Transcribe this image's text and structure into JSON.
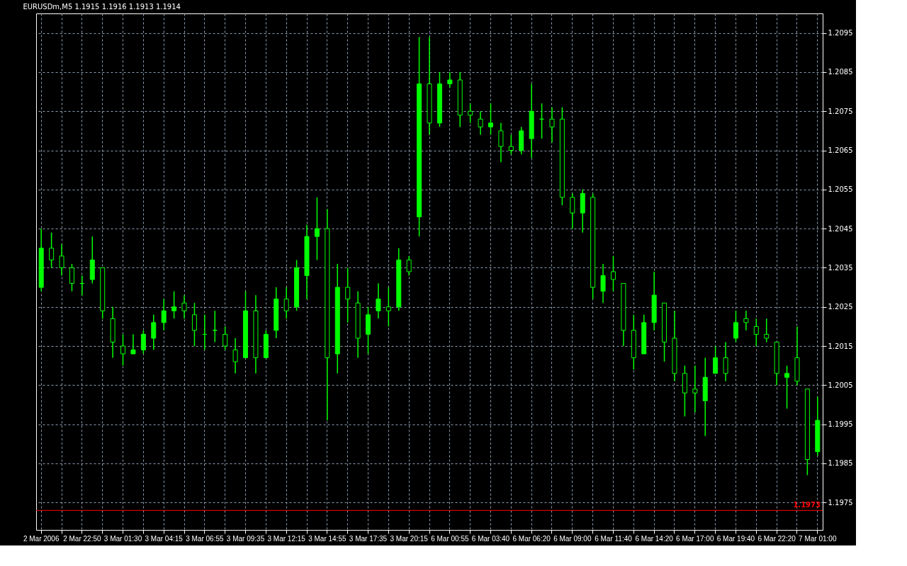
{
  "chart_data": {
    "type": "candlestick",
    "title": "EURUSDm,M5  1.1915 1.1916 1.1913 1.1914",
    "categories": [
      "2 Mar 2006",
      null,
      null,
      null,
      "2 Mar 22:50",
      null,
      null,
      null,
      "3 Mar 01:30",
      null,
      null,
      null,
      "3 Mar 04:15",
      null,
      null,
      null,
      "3 Mar 06:55",
      null,
      null,
      null,
      "3 Mar 09:35",
      null,
      null,
      null,
      "3 Mar 12:15",
      null,
      null,
      null,
      "3 Mar 14:55",
      null,
      null,
      null,
      "3 Mar 17:35",
      null,
      null,
      null,
      "3 Mar 20:15",
      null,
      null,
      null,
      "6 Mar 00:55",
      null,
      null,
      null,
      "6 Mar 03:40",
      null,
      null,
      null,
      "6 Mar 06:20",
      null,
      null,
      null,
      "6 Mar 09:00",
      null,
      null,
      null,
      "6 Mar 11:40",
      null,
      null,
      null,
      "6 Mar 14:20",
      null,
      null,
      null,
      "6 Mar 17:00",
      null,
      null,
      null,
      "6 Mar 19:40",
      null,
      null,
      null,
      "6 Mar 22:20",
      null,
      null,
      null,
      "7 Mar 01:00"
    ],
    "ohlc": [
      [
        1.203,
        1.2045,
        1.2029,
        1.204
      ],
      [
        1.204,
        1.2044,
        1.2035,
        1.2037
      ],
      [
        1.2038,
        1.2041,
        1.2033,
        1.2035
      ],
      [
        1.2035,
        1.2036,
        1.2029,
        1.2031
      ],
      [
        1.2031,
        1.2033,
        1.2028,
        1.2031
      ],
      [
        1.2032,
        1.2043,
        1.2031,
        1.2037
      ],
      [
        1.2035,
        1.2035,
        1.2022,
        1.2024
      ],
      [
        1.2022,
        1.2025,
        1.2012,
        1.2016
      ],
      [
        1.2015,
        1.2018,
        1.201,
        1.2013
      ],
      [
        1.2013,
        1.2018,
        1.2013,
        1.2014
      ],
      [
        1.2014,
        1.2019,
        1.2013,
        1.2018
      ],
      [
        1.2017,
        1.2023,
        1.2014,
        1.2021
      ],
      [
        1.2021,
        1.2027,
        1.2019,
        1.2024
      ],
      [
        1.2024,
        1.2029,
        1.2022,
        1.2025
      ],
      [
        1.2026,
        1.2028,
        1.2022,
        1.2024
      ],
      [
        1.2023,
        1.2026,
        1.2015,
        1.2019
      ],
      [
        1.2018,
        1.2023,
        1.2014,
        1.2018
      ],
      [
        1.2019,
        1.2024,
        1.2016,
        1.2019
      ],
      [
        1.2018,
        1.202,
        1.2014,
        1.2015
      ],
      [
        1.2014,
        1.2017,
        1.2008,
        1.2011
      ],
      [
        1.2012,
        1.2029,
        1.2012,
        1.2024
      ],
      [
        1.2024,
        1.2028,
        1.2008,
        1.2012
      ],
      [
        1.2012,
        1.2019,
        1.2012,
        1.2018
      ],
      [
        1.2019,
        1.203,
        1.2017,
        1.2027
      ],
      [
        1.2027,
        1.203,
        1.2022,
        1.2024
      ],
      [
        1.2025,
        1.2037,
        1.2024,
        1.2035
      ],
      [
        1.2033,
        1.2046,
        1.2027,
        1.2043
      ],
      [
        1.2043,
        1.2053,
        1.2037,
        1.2045
      ],
      [
        1.2045,
        1.205,
        1.1996,
        1.2012
      ],
      [
        1.2013,
        1.2036,
        1.2008,
        1.203
      ],
      [
        1.203,
        1.2035,
        1.2021,
        1.2027
      ],
      [
        1.2026,
        1.2029,
        1.2012,
        1.2017
      ],
      [
        1.2018,
        1.2025,
        1.2013,
        1.2023
      ],
      [
        1.2024,
        1.2031,
        1.2022,
        1.2027
      ],
      [
        1.2025,
        1.203,
        1.202,
        1.2024
      ],
      [
        1.2025,
        1.204,
        1.2024,
        1.2037
      ],
      [
        1.2037,
        1.2038,
        1.2033,
        1.2034
      ],
      [
        1.2048,
        1.2094,
        1.2043,
        1.2082
      ],
      [
        1.2082,
        1.2094,
        1.2069,
        1.2072
      ],
      [
        1.2072,
        1.2085,
        1.2071,
        1.2082
      ],
      [
        1.2082,
        1.2085,
        1.2081,
        1.2083
      ],
      [
        1.2083,
        1.2085,
        1.2071,
        1.2074
      ],
      [
        1.2075,
        1.2077,
        1.2072,
        1.2074
      ],
      [
        1.2073,
        1.2075,
        1.2069,
        1.2071
      ],
      [
        1.2071,
        1.2077,
        1.2069,
        1.2072
      ],
      [
        1.207,
        1.2072,
        1.2062,
        1.2066
      ],
      [
        1.2066,
        1.2069,
        1.2064,
        1.2065
      ],
      [
        1.2065,
        1.2071,
        1.2064,
        1.207
      ],
      [
        1.2068,
        1.2082,
        1.2063,
        1.2075
      ],
      [
        1.2073,
        1.2077,
        1.2068,
        1.2073
      ],
      [
        1.2073,
        1.2076,
        1.2067,
        1.2071
      ],
      [
        1.2073,
        1.2076,
        1.2051,
        1.2053
      ],
      [
        1.2053,
        1.2054,
        1.2045,
        1.2049
      ],
      [
        1.2049,
        1.2055,
        1.2044,
        1.2054
      ],
      [
        1.2053,
        1.2054,
        1.2027,
        1.203
      ],
      [
        1.2029,
        1.2036,
        1.2026,
        1.2033
      ],
      [
        1.2034,
        1.2038,
        1.2029,
        1.2032
      ],
      [
        1.2031,
        1.2031,
        1.2015,
        1.2019
      ],
      [
        1.2019,
        1.2023,
        1.2009,
        1.2012
      ],
      [
        1.2013,
        1.2023,
        1.2013,
        1.2021
      ],
      [
        1.2021,
        1.2034,
        1.2019,
        1.2028
      ],
      [
        1.2026,
        1.2026,
        1.2011,
        1.2016
      ],
      [
        1.2017,
        1.2024,
        1.2006,
        1.2008
      ],
      [
        1.2008,
        1.201,
        1.1997,
        1.2003
      ],
      [
        1.2004,
        1.201,
        1.1998,
        1.2003
      ],
      [
        1.2001,
        1.2012,
        1.1992,
        1.2007
      ],
      [
        1.2008,
        1.2015,
        1.2008,
        1.2012
      ],
      [
        1.2012,
        1.2016,
        1.2006,
        1.2008
      ],
      [
        1.2017,
        1.2024,
        1.2016,
        1.2021
      ],
      [
        1.2022,
        1.2024,
        1.2019,
        1.2021
      ],
      [
        1.202,
        1.2022,
        1.2015,
        1.2018
      ],
      [
        1.2018,
        1.2022,
        1.2016,
        1.2017
      ],
      [
        1.2016,
        1.2016,
        1.2005,
        1.2008
      ],
      [
        1.2007,
        1.201,
        1.1999,
        1.2008
      ],
      [
        1.2012,
        1.202,
        1.2005,
        1.2006
      ],
      [
        1.2004,
        1.2004,
        1.1982,
        1.1986
      ],
      [
        1.1988,
        1.2002,
        1.1987,
        1.1996
      ]
    ],
    "color": "#00ff00",
    "ylim": [
      1.1968,
      1.21
    ],
    "yticks": [
      1.1975,
      1.1985,
      1.1995,
      1.2005,
      1.2015,
      1.2025,
      1.2035,
      1.2045,
      1.2055,
      1.2065,
      1.2075,
      1.2085,
      1.2095
    ],
    "ref_lines": [
      {
        "axis": "y",
        "value": 1.1973,
        "label": "1.1973",
        "color": "#ff0000"
      }
    ],
    "grid": true,
    "line_style": "solid"
  }
}
